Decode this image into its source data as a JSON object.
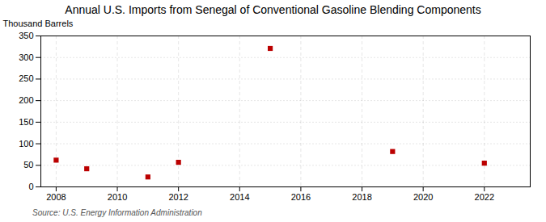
{
  "chart_data": {
    "type": "scatter",
    "title": "Annual U.S. Imports from Senegal of Conventional Gasoline Blending Components",
    "ylabel": "Thousand Barrels",
    "source": "Source: U.S. Energy Information Administration",
    "x": [
      2008,
      2009,
      2011,
      2012,
      2015,
      2019,
      2022
    ],
    "values": [
      62,
      42,
      23,
      57,
      321,
      82,
      55
    ],
    "color": "#bb0000",
    "marker": "square",
    "xlim": [
      2007.5,
      2023.5
    ],
    "ylim": [
      0,
      350
    ],
    "xticks": [
      2008,
      2010,
      2012,
      2014,
      2016,
      2018,
      2020,
      2022
    ],
    "yticks": [
      0,
      50,
      100,
      150,
      200,
      250,
      300,
      350
    ],
    "grid": true
  }
}
